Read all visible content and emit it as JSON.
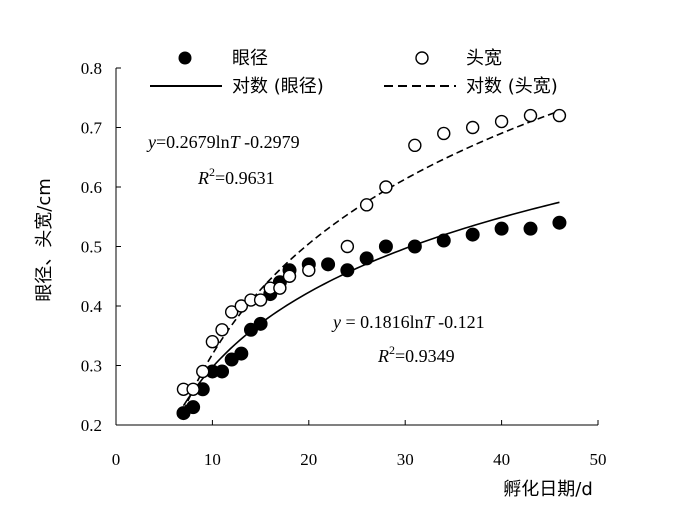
{
  "chart_data": {
    "type": "scatter",
    "xlabel": "孵化日期/d",
    "ylabel": "眼径、头宽/cm",
    "xlim": [
      0,
      50
    ],
    "ylim": [
      0.2,
      0.8
    ],
    "x_ticks": [
      "0",
      "10",
      "20",
      "30",
      "40",
      "50"
    ],
    "y_ticks": [
      "0.2",
      "0.3",
      "0.4",
      "0.5",
      "0.6",
      "0.7",
      "0.8"
    ],
    "grid": false,
    "legend_position": "top",
    "series": [
      {
        "name": "眼径",
        "marker": "filled-circle",
        "color": "#000000",
        "points": [
          [
            7,
            0.22
          ],
          [
            8,
            0.23
          ],
          [
            9,
            0.26
          ],
          [
            10,
            0.29
          ],
          [
            11,
            0.29
          ],
          [
            12,
            0.31
          ],
          [
            13,
            0.32
          ],
          [
            14,
            0.36
          ],
          [
            15,
            0.37
          ],
          [
            16,
            0.42
          ],
          [
            17,
            0.44
          ],
          [
            18,
            0.46
          ],
          [
            20,
            0.47
          ],
          [
            22,
            0.47
          ],
          [
            24,
            0.46
          ],
          [
            26,
            0.48
          ],
          [
            28,
            0.5
          ],
          [
            31,
            0.5
          ],
          [
            34,
            0.51
          ],
          [
            37,
            0.52
          ],
          [
            40,
            0.53
          ],
          [
            43,
            0.53
          ],
          [
            46,
            0.54
          ]
        ]
      },
      {
        "name": "头宽",
        "marker": "open-circle",
        "color": "#000000",
        "points": [
          [
            7,
            0.26
          ],
          [
            8,
            0.26
          ],
          [
            9,
            0.29
          ],
          [
            10,
            0.34
          ],
          [
            11,
            0.36
          ],
          [
            12,
            0.39
          ],
          [
            13,
            0.4
          ],
          [
            14,
            0.41
          ],
          [
            15,
            0.41
          ],
          [
            16,
            0.43
          ],
          [
            17,
            0.43
          ],
          [
            18,
            0.45
          ],
          [
            20,
            0.46
          ],
          [
            24,
            0.5
          ],
          [
            26,
            0.57
          ],
          [
            28,
            0.6
          ],
          [
            31,
            0.67
          ],
          [
            34,
            0.69
          ],
          [
            37,
            0.7
          ],
          [
            40,
            0.71
          ],
          [
            43,
            0.72
          ],
          [
            46,
            0.72
          ]
        ]
      }
    ],
    "trendlines": [
      {
        "name": "对数 (眼径)",
        "style": "solid",
        "a": 0.1816,
        "b": -0.121,
        "x_range": [
          7,
          46
        ]
      },
      {
        "name": "对数 (头宽)",
        "style": "dashed",
        "a": 0.2679,
        "b": -0.2979,
        "x_range": [
          7,
          46
        ]
      }
    ],
    "annotations": [
      {
        "eq_prefix": "y",
        "eq_mid": "=0.2679ln",
        "eq_var": "T",
        "eq_rest": " -0.2979",
        "r_base": "R",
        "r_exp": "2",
        "r_val": "=0.9631"
      },
      {
        "eq_prefix": "y",
        "eq_mid": " = 0.1816ln",
        "eq_var": "T",
        "eq_rest": " -0.121",
        "r_base": "R",
        "r_exp": "2",
        "r_val": "=0.9349"
      }
    ]
  }
}
